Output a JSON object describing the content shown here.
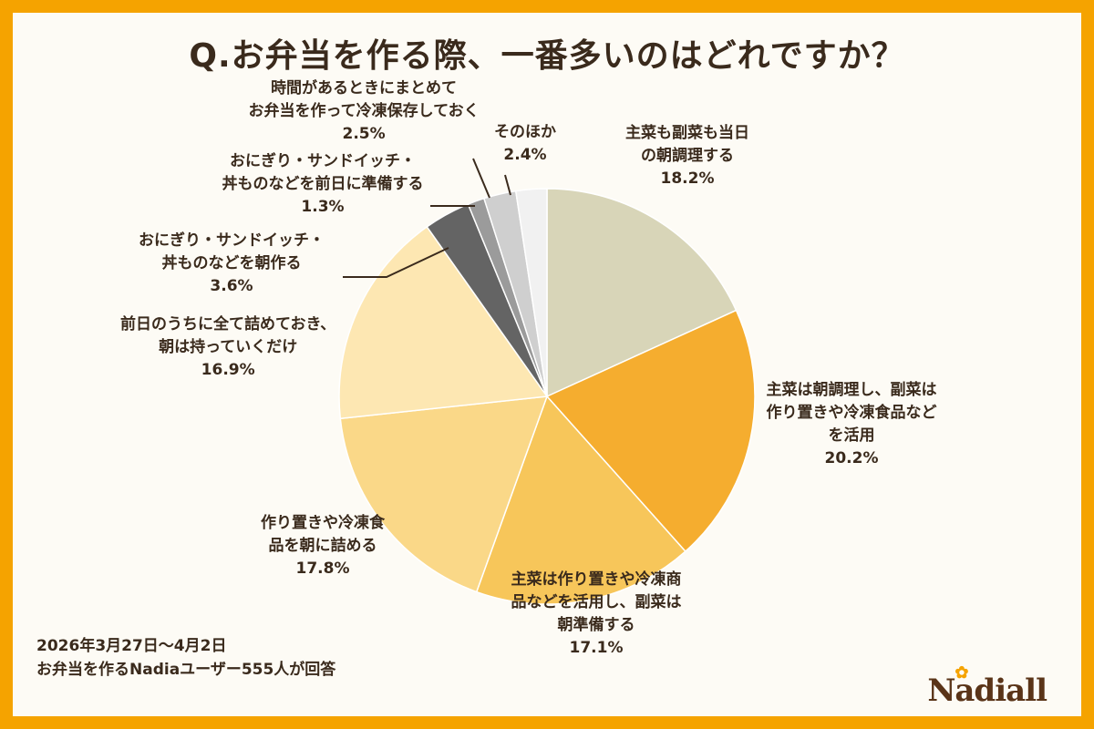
{
  "title": "Q.お弁当を作る際、一番多いのはどれですか？",
  "footer": {
    "date_range": "2026年3月27日〜4月2日",
    "respondents": "お弁当を作るNadiaユーザー555人が回答"
  },
  "brand": {
    "logo_text": "Nadiall"
  },
  "chart_data": {
    "type": "pie",
    "title": "Q.お弁当を作る際、一番多いのはどれですか？",
    "slices": [
      {
        "label_lines": [
          "主菜も副菜も当日",
          "の朝調理する"
        ],
        "value": 18.2,
        "value_label": "18.2%",
        "color": "#d8d5b8"
      },
      {
        "label_lines": [
          "主菜は朝調理し、副菜は",
          "作り置きや冷凍食品など",
          "を活用"
        ],
        "value": 20.2,
        "value_label": "20.2%",
        "color": "#f5ad2f"
      },
      {
        "label_lines": [
          "主菜は作り置きや冷凍商",
          "品などを活用し、副菜は",
          "朝準備する"
        ],
        "value": 17.1,
        "value_label": "17.1%",
        "color": "#f7c65a"
      },
      {
        "label_lines": [
          "作り置きや冷凍食",
          "品を朝に詰める"
        ],
        "value": 17.8,
        "value_label": "17.8%",
        "color": "#fad888"
      },
      {
        "label_lines": [
          "前日のうちに全て詰めておき、",
          "朝は持っていくだけ"
        ],
        "value": 16.9,
        "value_label": "16.9%",
        "color": "#fde7b2"
      },
      {
        "label_lines": [
          "おにぎり・サンドイッチ・",
          "丼ものなどを朝作る"
        ],
        "value": 3.6,
        "value_label": "3.6%",
        "color": "#646464"
      },
      {
        "label_lines": [
          "おにぎり・サンドイッチ・",
          "丼ものなどを前日に準備する"
        ],
        "value": 1.3,
        "value_label": "1.3%",
        "color": "#9b9b9b"
      },
      {
        "label_lines": [
          "時間があるときにまとめて",
          "お弁当を作って冷凍保存しておく"
        ],
        "value": 2.5,
        "value_label": "2.5%",
        "color": "#cfcfcf"
      },
      {
        "label_lines": [
          "そのほか"
        ],
        "value": 2.4,
        "value_label": "2.4%",
        "color": "#f1f1f1"
      }
    ]
  }
}
